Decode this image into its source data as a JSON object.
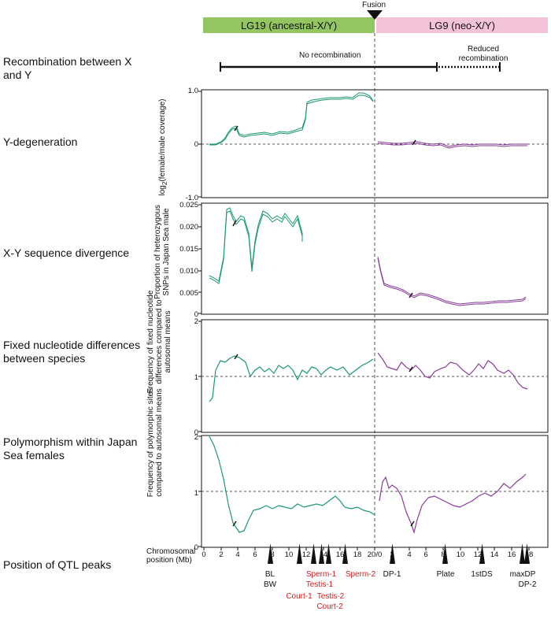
{
  "header": {
    "fusion_label": "Fusion",
    "lg19_label": "LG19 (ancestral-X/Y)",
    "lg9_label": "LG9 (neo-X/Y)",
    "lg19_color": "#93c560",
    "lg9_color": "#f5c3d9"
  },
  "recombination": {
    "row_label": "Recombination between X and Y",
    "no_recomb_label": "No recombination",
    "reduced_label": "Reduced recombination"
  },
  "panels": [
    {
      "row_label": "Y-degeneration",
      "ylabel": "log2(female/male coverage)",
      "ticks": [
        "1.0",
        "0",
        "-1.0"
      ]
    },
    {
      "row_label": "X-Y sequence divergence",
      "ylabel": "Proportion of heterozygous SNPs in Japan Sea male",
      "ticks": [
        "0.025",
        "0.020",
        "0.015",
        "0.010",
        "0.005",
        "0"
      ]
    },
    {
      "row_label": "Fixed nucleotide differences between species",
      "ylabel": "Frequency of fixed nucleotide differences compared to autosomal means",
      "ticks": [
        "2",
        "1",
        "0"
      ]
    },
    {
      "row_label": "Polymorphism within Japan Sea females",
      "ylabel": "Frequency of polymorphic sites compared to autosomal means",
      "ticks": [
        "2",
        "1",
        "0"
      ]
    }
  ],
  "xaxis": {
    "label": "Chromosomal position  (Mb)",
    "ticks_lg19": [
      "0",
      "2",
      "4",
      "6",
      "8",
      "10",
      "12",
      "14",
      "16",
      "18"
    ],
    "boundary_tick": "20/0",
    "ticks_lg9": [
      "2",
      "4",
      "6",
      "8",
      "10",
      "12",
      "14",
      "16",
      "18"
    ]
  },
  "qtl": {
    "row_label": "Position of QTL peaks",
    "labels": [
      {
        "text": "BL",
        "color": "#111111"
      },
      {
        "text": "BW",
        "color": "#111111"
      },
      {
        "text": "Court-1",
        "color": "#d12020"
      },
      {
        "text": "Sperm-1",
        "color": "#d12020"
      },
      {
        "text": "Testis-1",
        "color": "#d12020"
      },
      {
        "text": "Testis-2",
        "color": "#d12020"
      },
      {
        "text": "Court-2",
        "color": "#d12020"
      },
      {
        "text": "Sperm-2",
        "color": "#d12020"
      },
      {
        "text": "DP-1",
        "color": "#111111"
      },
      {
        "text": "Plate",
        "color": "#111111"
      },
      {
        "text": "1stDS",
        "color": "#111111"
      },
      {
        "text": "maxDP",
        "color": "#111111"
      },
      {
        "text": "DP-2",
        "color": "#111111"
      }
    ]
  },
  "colors": {
    "lg19_line": "#1a9a6a",
    "lg9_line": "#8a3a9a"
  }
}
